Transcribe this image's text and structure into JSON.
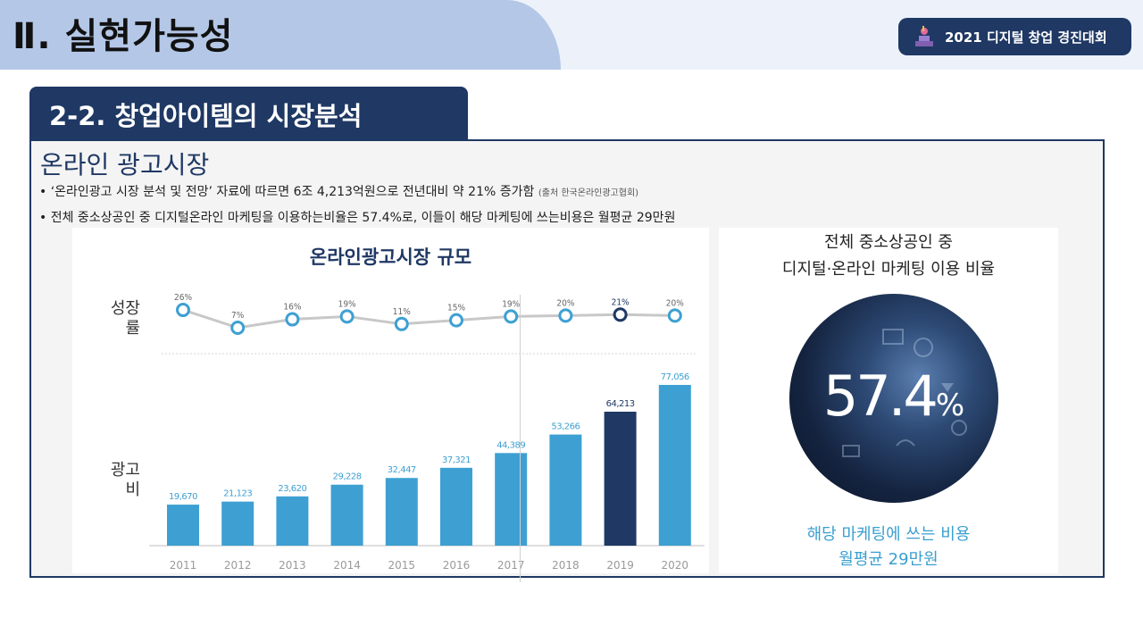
{
  "header": {
    "section_title": "Ⅱ. 실현가능성",
    "event_badge": "2021 디지털 창업 경진대회"
  },
  "subsection": {
    "title": "2-2. 창업아이템의 시장분석"
  },
  "market": {
    "heading": "온라인 광고시장",
    "bullets": [
      "• ‘온라인광고 시장 분석 및 전망’ 자료에 따르면 6조 4,213억원으로 전년대비 약 21% 증가함",
      "• 전체 중소상공인 중 디지털온라인 마케팅을 이용하는비율은 57.4%로, 이들이 해당 마케팅에 쓰는비용은 월평균 29만원"
    ],
    "source_note": "(출처 한국온라인광고협회)"
  },
  "chart_labels": {
    "growth_row": "성장\n률",
    "spend_row": "광고\n비"
  },
  "chart_data": {
    "type": "bar",
    "title": "온라인광고시장 규모",
    "categories": [
      "2011",
      "2012",
      "2013",
      "2014",
      "2015",
      "2016",
      "2017",
      "2018",
      "2019",
      "2020"
    ],
    "values": [
      19670,
      21123,
      23620,
      29228,
      32447,
      37321,
      44389,
      53266,
      64213,
      77056
    ],
    "value_labels": [
      "19,670",
      "21,123",
      "23,620",
      "29,228",
      "32,447",
      "37,321",
      "44,389",
      "53,266",
      "64,213",
      "77,056"
    ],
    "growth_rates": [
      26,
      7,
      16,
      19,
      11,
      15,
      19,
      20,
      21,
      20
    ],
    "growth_labels": [
      "26%",
      "7%",
      "16%",
      "19%",
      "11%",
      "15%",
      "19%",
      "20%",
      "21%",
      "20%"
    ],
    "highlight_category": "2019",
    "colors": {
      "bar": "#3ea0d2",
      "highlight": "#1f3864",
      "line": "#c8c8c8",
      "axis": "#bfbfbf",
      "text": "#3ea0d2",
      "tick": "#9a9a9a"
    }
  },
  "ratio": {
    "title_line1": "전체 중소상공인 중",
    "title_line2": "디지털·온라인 마케팅 이용 비율",
    "value": "57.4",
    "unit": "%",
    "caption_line1": "해당 마케팅에 쓰는 비용",
    "caption_line2": "월평균 29만원"
  },
  "theme": {
    "navy": "#1f3864",
    "light_blue": "#b4c7e7",
    "accent": "#3ea0d2"
  }
}
